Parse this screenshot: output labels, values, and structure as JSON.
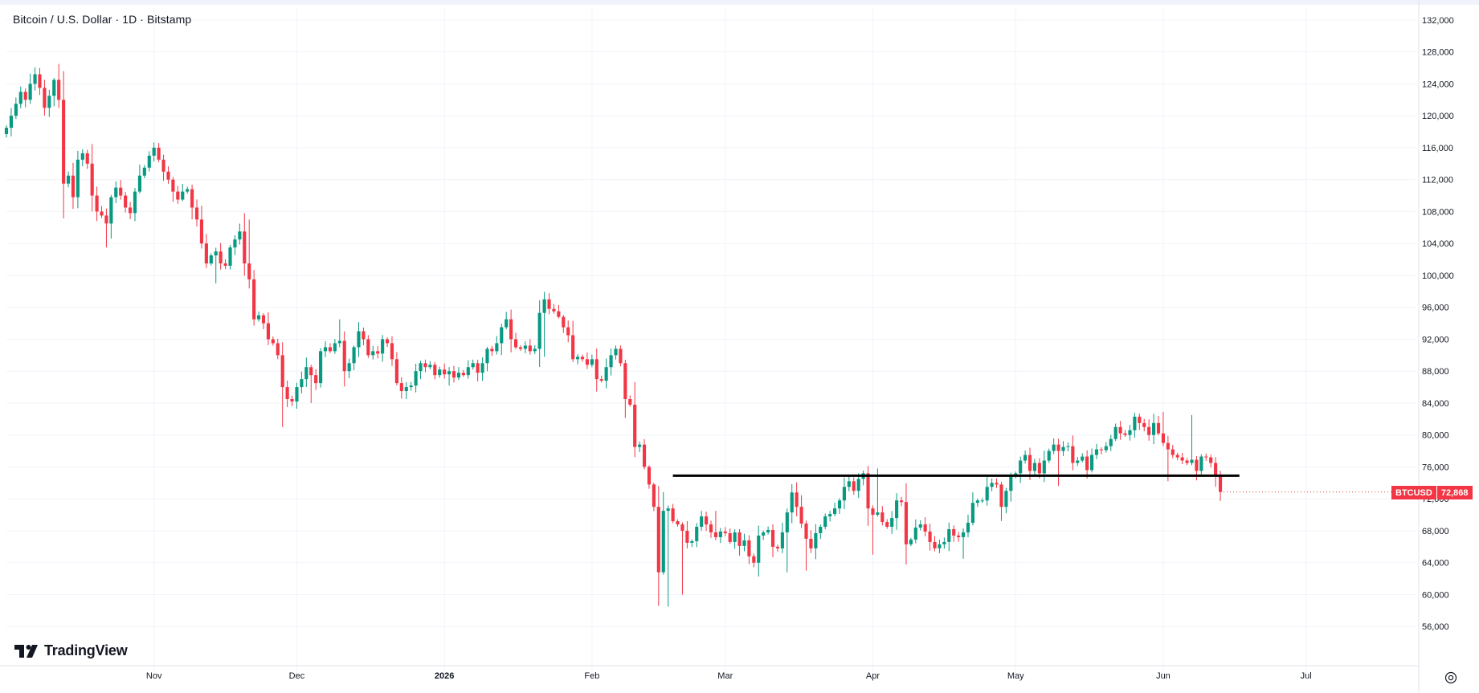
{
  "header": {
    "title": "Bitcoin / U.S. Dollar · 1D · Bitstamp"
  },
  "branding": {
    "logo_text": "TradingView"
  },
  "price_badge": {
    "symbol": "BTCUSD",
    "price": "72,868"
  },
  "icons": {
    "settings": "gear-icon",
    "logo": "tradingview-logo-icon"
  },
  "colors": {
    "up": "#089981",
    "down": "#f23645",
    "grid": "#f0f3fa",
    "line": "#000000",
    "badge": "#f23645"
  },
  "chart_data": {
    "type": "candlestick",
    "title": "Bitcoin / U.S. Dollar · 1D · Bitstamp",
    "ylim": [
      52000,
      133500
    ],
    "y_ticks": [
      56000,
      60000,
      64000,
      68000,
      72000,
      76000,
      80000,
      84000,
      88000,
      92000,
      96000,
      100000,
      104000,
      108000,
      112000,
      116000,
      120000,
      124000,
      128000,
      132000
    ],
    "y_tick_labels": [
      "56,000",
      "60,000",
      "64,000",
      "68,000",
      "72,000",
      "76,000",
      "80,000",
      "84,000",
      "88,000",
      "92,000",
      "96,000",
      "100,000",
      "104,000",
      "108,000",
      "112,000",
      "116,000",
      "120,000",
      "124,000",
      "128,000",
      "132,000"
    ],
    "x_range": [
      "2025-10-01",
      "2026-07-24"
    ],
    "x_ticks": [
      {
        "date": "2025-11-01",
        "label": "Nov",
        "bold": false
      },
      {
        "date": "2025-12-01",
        "label": "Dec",
        "bold": false
      },
      {
        "date": "2026-01-01",
        "label": "2026",
        "bold": true
      },
      {
        "date": "2026-02-01",
        "label": "Feb",
        "bold": false
      },
      {
        "date": "2026-03-01",
        "label": "Mar",
        "bold": false
      },
      {
        "date": "2026-04-01",
        "label": "Apr",
        "bold": false
      },
      {
        "date": "2026-05-01",
        "label": "May",
        "bold": false
      },
      {
        "date": "2026-06-01",
        "label": "Jun",
        "bold": false
      },
      {
        "date": "2026-07-01",
        "label": "Jul",
        "bold": false
      }
    ],
    "start_date": "2025-10-01",
    "closes": [
      118500,
      120000,
      121500,
      123000,
      122000,
      124000,
      125200,
      123500,
      121000,
      122500,
      124500,
      122000,
      111500,
      112500,
      109800,
      114500,
      115300,
      114000,
      110000,
      108000,
      107500,
      106500,
      109800,
      111000,
      110000,
      108500,
      107800,
      110500,
      112500,
      113500,
      115000,
      116000,
      114500,
      113000,
      112000,
      110500,
      109500,
      110500,
      110800,
      108500,
      107000,
      104000,
      101500,
      102500,
      103000,
      101500,
      101200,
      103500,
      104500,
      105500,
      101500,
      99500,
      94500,
      95000,
      94000,
      92000,
      91500,
      90000,
      86000,
      84500,
      84200,
      86000,
      87000,
      88500,
      87500,
      86500,
      90500,
      91000,
      90500,
      91500,
      91800,
      88000,
      89000,
      91000,
      93000,
      92000,
      90000,
      90500,
      90200,
      92000,
      91500,
      89500,
      86500,
      85500,
      86000,
      86200,
      88000,
      89000,
      88500,
      88800,
      87500,
      88200,
      87600,
      88000,
      87200,
      87800,
      87500,
      88500,
      89000,
      87800,
      89000,
      90800,
      90500,
      91500,
      93500,
      94500,
      92000,
      91000,
      90800,
      91200,
      90500,
      90800,
      95300,
      97000,
      95800,
      95500,
      94800,
      93500,
      92500,
      89500,
      89800,
      89500,
      88800,
      89500,
      87000,
      86800,
      88500,
      90000,
      90800,
      89000,
      84500,
      83800,
      78500,
      78800,
      76000,
      73800,
      71000,
      62800,
      70500,
      70800,
      69200,
      68800,
      68000,
      66500,
      66700,
      68500,
      69800,
      68800,
      67800,
      67200,
      67900,
      67700,
      66600,
      67800,
      66100,
      66800,
      64800,
      64000,
      67400,
      67800,
      68100,
      66000,
      65800,
      67800,
      70300,
      72800,
      71000,
      68900,
      67000,
      65800,
      67700,
      68500,
      69800,
      70100,
      70800,
      71800,
      73500,
      74200,
      73000,
      74500,
      75200,
      70800,
      70000,
      70300,
      69100,
      68500,
      69600,
      71800,
      71600,
      66300,
      66900,
      68400,
      68800,
      67900,
      66600,
      65800,
      66300,
      66600,
      68200,
      67400,
      67200,
      67800,
      69000,
      71500,
      71800,
      71800,
      73500,
      74000,
      73800,
      71000,
      73000,
      75000,
      75200,
      76800,
      77500,
      75500,
      76500,
      75200,
      76800,
      78000,
      78800,
      78000,
      78500,
      78600,
      76500,
      76800,
      77300,
      75600,
      77500,
      78200,
      78100,
      78600,
      79500,
      81000,
      80200,
      80000,
      80600,
      82300,
      81500,
      81000,
      80000,
      81500,
      80200,
      79000,
      78200,
      77500,
      77200,
      76800,
      76500,
      76900,
      75500,
      77300,
      77200,
      76500,
      74800,
      72868
    ],
    "lows": [
      [
        0,
        118000
      ],
      [
        12,
        110000
      ],
      [
        21,
        103500
      ],
      [
        44,
        99000
      ],
      [
        58,
        81000
      ],
      [
        64,
        84000
      ],
      [
        84,
        84500
      ],
      [
        93,
        86200
      ],
      [
        113,
        89800
      ],
      [
        139,
        58500
      ],
      [
        142,
        60000
      ],
      [
        164,
        62800
      ],
      [
        168,
        63000
      ],
      [
        182,
        65000
      ],
      [
        201,
        64500
      ],
      [
        221,
        73600
      ],
      [
        244,
        74200
      ],
      [
        256,
        72000
      ]
    ],
    "highs": [
      [
        11,
        126500
      ],
      [
        31,
        116500
      ],
      [
        51,
        107000
      ],
      [
        70,
        94500
      ],
      [
        113,
        97800
      ],
      [
        149,
        70500
      ],
      [
        183,
        75800
      ],
      [
        243,
        82900
      ],
      [
        249,
        82500
      ]
    ],
    "support_line": {
      "from": "2026-02-18",
      "to": "2026-06-17",
      "price": 74900
    }
  }
}
